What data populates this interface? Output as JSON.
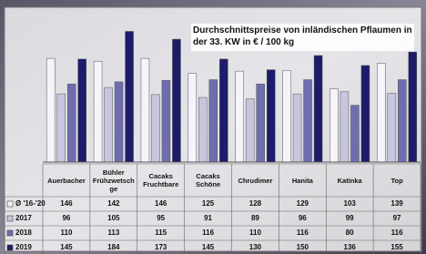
{
  "chart_data": {
    "type": "bar",
    "title": "Durchschnittspreise von inländischen Pflaumen in der 33. KW in € / 100 kg",
    "categories": [
      "Auerbacher",
      "Bühler Frühzwetschge",
      "Cacaks Fruchtbare",
      "Cacaks Schöne",
      "Chrudimer",
      "Hanita",
      "Katinka",
      "Top"
    ],
    "series": [
      {
        "name": "Ø '16-'20",
        "color": "#f4f4fa",
        "values": [
          146,
          142,
          146,
          125,
          128,
          129,
          103,
          139
        ]
      },
      {
        "name": "2017",
        "color": "#c6c6de",
        "values": [
          96,
          105,
          95,
          91,
          89,
          96,
          99,
          97
        ]
      },
      {
        "name": "2018",
        "color": "#6e6eae",
        "values": [
          110,
          113,
          115,
          116,
          110,
          116,
          80,
          116
        ]
      },
      {
        "name": "2019",
        "color": "#1c1c6a",
        "values": [
          145,
          184,
          173,
          145,
          130,
          150,
          136,
          155
        ]
      }
    ],
    "ylim": [
      0,
      200
    ]
  }
}
